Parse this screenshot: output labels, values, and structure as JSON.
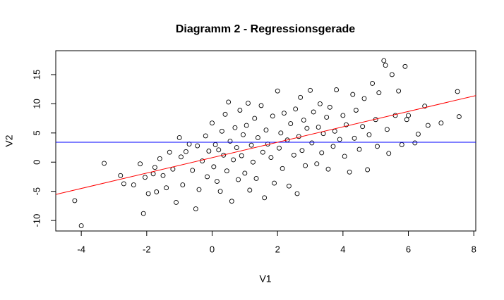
{
  "chart_data": {
    "type": "scatter",
    "title": "Diagramm 2 - Regressionsgerade",
    "x_label": "V1",
    "y_label": "V2",
    "xlim": [
      -4.78,
      8.06
    ],
    "ylim": [
      -11.8,
      19.1
    ],
    "xticks": [
      -4,
      -2,
      0,
      2,
      4,
      6,
      8
    ],
    "yticks": [
      -10,
      -5,
      0,
      5,
      10,
      15
    ],
    "color": "#000000",
    "x": [
      -4.2,
      -4.0,
      -3.3,
      -2.8,
      -2.7,
      -2.4,
      -2.2,
      -2.1,
      -2.05,
      -1.95,
      -1.8,
      -1.75,
      -1.7,
      -1.6,
      -1.5,
      -1.4,
      -1.3,
      -1.2,
      -1.1,
      -1.0,
      -0.95,
      -0.9,
      -0.8,
      -0.7,
      -0.6,
      -0.5,
      -0.45,
      -0.4,
      -0.3,
      -0.2,
      -0.15,
      -0.1,
      0.0,
      0.05,
      0.1,
      0.15,
      0.2,
      0.25,
      0.3,
      0.35,
      0.4,
      0.45,
      0.5,
      0.55,
      0.6,
      0.65,
      0.7,
      0.75,
      0.8,
      0.85,
      0.9,
      0.95,
      1.0,
      1.05,
      1.1,
      1.15,
      1.2,
      1.25,
      1.3,
      1.35,
      1.4,
      1.5,
      1.55,
      1.6,
      1.65,
      1.7,
      1.8,
      1.85,
      1.9,
      2.0,
      2.05,
      2.1,
      2.15,
      2.2,
      2.3,
      2.35,
      2.4,
      2.5,
      2.55,
      2.6,
      2.65,
      2.7,
      2.75,
      2.8,
      2.85,
      2.9,
      3.0,
      3.05,
      3.1,
      3.2,
      3.25,
      3.3,
      3.35,
      3.4,
      3.5,
      3.55,
      3.6,
      3.7,
      3.75,
      3.8,
      3.9,
      4.0,
      4.05,
      4.1,
      4.2,
      4.3,
      4.35,
      4.4,
      4.5,
      4.6,
      4.65,
      4.75,
      4.8,
      4.9,
      5.0,
      5.05,
      5.1,
      5.25,
      5.3,
      5.35,
      5.4,
      5.5,
      5.6,
      5.7,
      5.8,
      5.9,
      5.95,
      6.0,
      6.2,
      6.3,
      6.5,
      6.6,
      7.0,
      7.5,
      7.55
    ],
    "values": [
      -6.6,
      -10.9,
      -0.2,
      -2.3,
      -3.7,
      -3.9,
      -0.3,
      -8.8,
      -2.6,
      -5.4,
      -2.0,
      -0.9,
      -5.1,
      0.6,
      -2.3,
      -4.4,
      1.7,
      -1.2,
      -6.9,
      4.2,
      0.9,
      -3.9,
      1.8,
      3.1,
      -1.4,
      -8.0,
      2.8,
      -4.7,
      0.2,
      4.5,
      -2.5,
      1.9,
      6.7,
      -0.8,
      3.0,
      -3.3,
      2.1,
      -5.0,
      5.3,
      1.2,
      8.2,
      -1.5,
      10.3,
      3.6,
      -6.7,
      0.4,
      5.9,
      2.5,
      -3.0,
      8.9,
      1.1,
      4.7,
      -1.9,
      6.3,
      10.1,
      -4.8,
      2.9,
      0.0,
      7.5,
      -2.8,
      4.2,
      9.7,
      1.7,
      -6.1,
      5.5,
      3.1,
      0.8,
      7.9,
      -3.6,
      12.2,
      2.4,
      5.0,
      -1.1,
      8.4,
      3.8,
      -4.1,
      6.6,
      1.2,
      9.1,
      -5.4,
      4.4,
      11.1,
      2.0,
      7.2,
      -0.6,
      5.8,
      12.3,
      3.3,
      8.6,
      -0.3,
      6.0,
      10.0,
      1.6,
      4.9,
      7.7,
      -1.2,
      9.4,
      2.7,
      5.3,
      12.4,
      3.9,
      8.0,
      1.0,
      6.4,
      -1.7,
      11.6,
      4.1,
      8.9,
      2.2,
      6.1,
      10.9,
      -1.3,
      4.7,
      13.5,
      7.3,
      2.7,
      11.9,
      17.4,
      16.6,
      5.6,
      1.5,
      15.0,
      8.0,
      12.2,
      3.0,
      16.4,
      7.3,
      8.0,
      3.3,
      4.8,
      9.6,
      6.3,
      6.7,
      12.1,
      7.8
    ],
    "lines": [
      {
        "color": "#ff0000",
        "intercept": 0.77,
        "slope": 1.32
      }
    ],
    "hlines": [
      {
        "color": "#0000ff",
        "value": 3.41
      }
    ]
  }
}
